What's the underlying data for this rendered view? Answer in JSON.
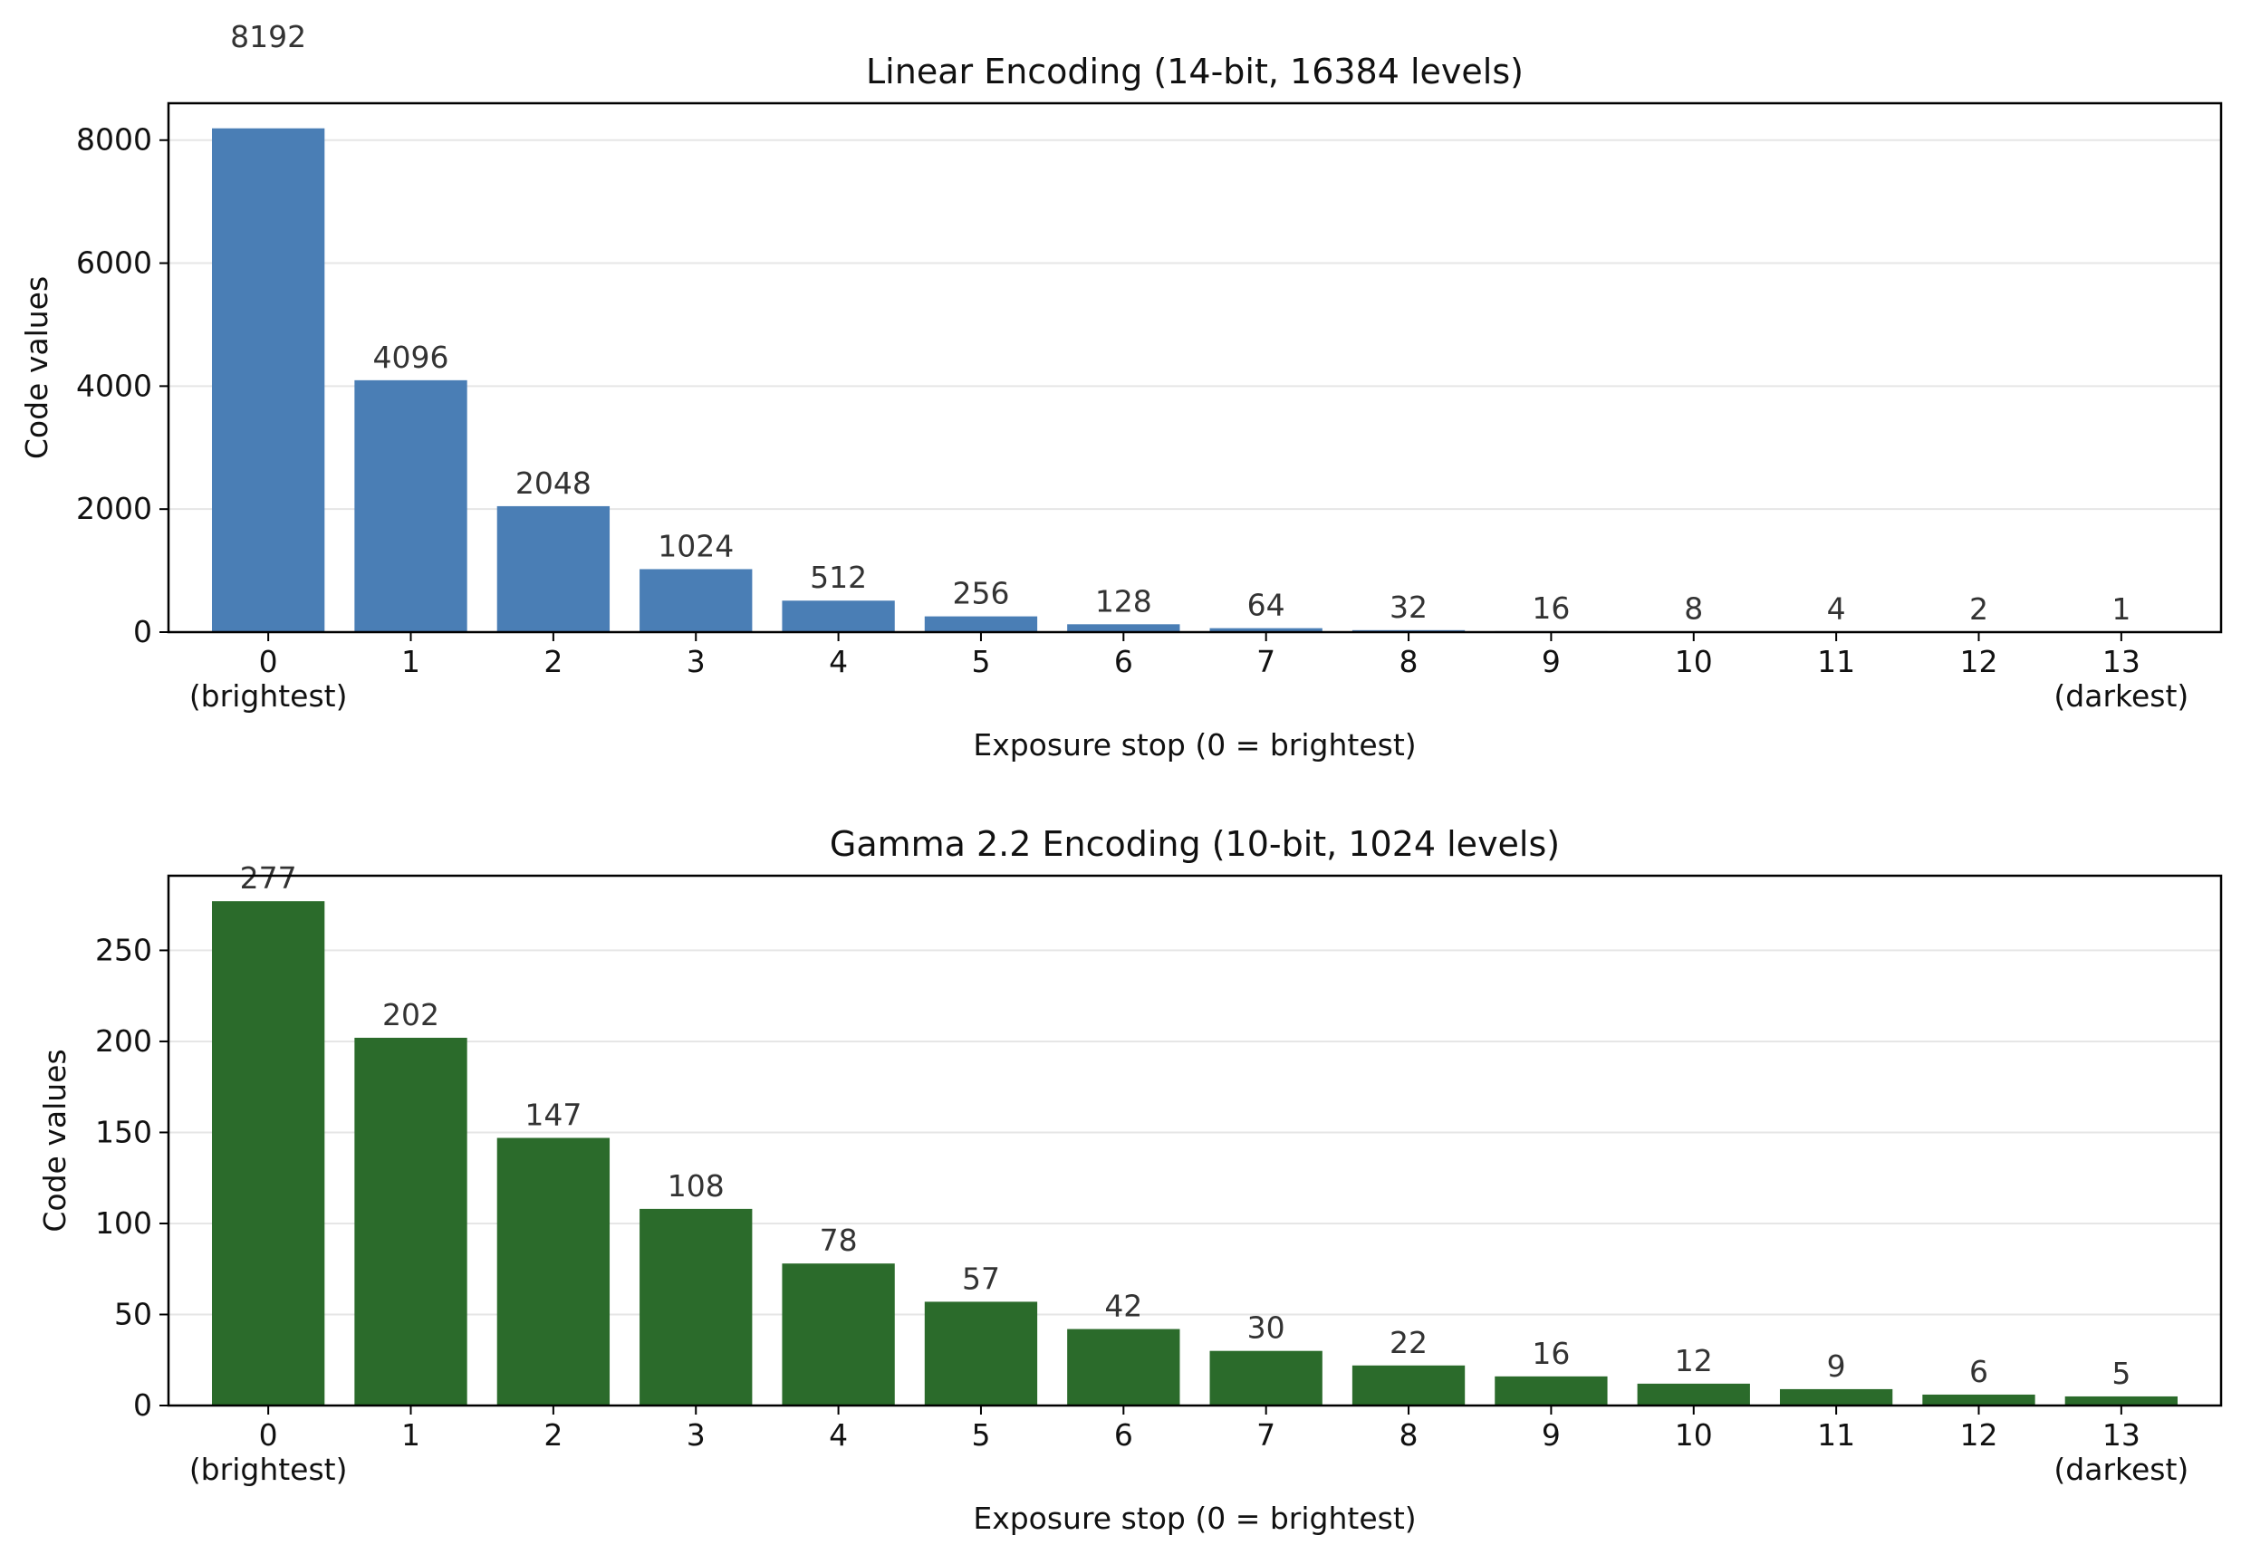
{
  "chart_data": [
    {
      "type": "bar",
      "title": "Linear Encoding (14-bit, 16384 levels)",
      "xlabel": "Exposure stop (0 = brightest)",
      "ylabel": "Code values",
      "categories": [
        "0",
        "1",
        "2",
        "3",
        "4",
        "5",
        "6",
        "7",
        "8",
        "9",
        "10",
        "11",
        "12",
        "13"
      ],
      "category_sublabels": {
        "0": "(brightest)",
        "13": "(darkest)"
      },
      "values": [
        8192,
        4096,
        2048,
        1024,
        512,
        256,
        128,
        64,
        32,
        16,
        8,
        4,
        2,
        1
      ],
      "data_labels": [
        "8192",
        "4096",
        "2048",
        "1024",
        "512",
        "256",
        "128",
        "64",
        "32",
        "16",
        "8",
        "4",
        "2",
        "1"
      ],
      "yticks": [
        "0",
        "2000",
        "4000",
        "6000",
        "8000"
      ],
      "ylim": [
        0,
        8600
      ],
      "grid": "y",
      "color": "#4a7eb5"
    },
    {
      "type": "bar",
      "title": "Gamma 2.2 Encoding (10-bit, 1024 levels)",
      "xlabel": "Exposure stop (0 = brightest)",
      "ylabel": "Code values",
      "categories": [
        "0",
        "1",
        "2",
        "3",
        "4",
        "5",
        "6",
        "7",
        "8",
        "9",
        "10",
        "11",
        "12",
        "13"
      ],
      "category_sublabels": {
        "0": "(brightest)",
        "13": "(darkest)"
      },
      "values": [
        277,
        202,
        147,
        108,
        78,
        57,
        42,
        30,
        22,
        16,
        12,
        9,
        6,
        5
      ],
      "data_labels": [
        "277",
        "202",
        "147",
        "108",
        "78",
        "57",
        "42",
        "30",
        "22",
        "16",
        "12",
        "9",
        "6",
        "5"
      ],
      "yticks": [
        "0",
        "50",
        "100",
        "150",
        "200",
        "250"
      ],
      "ylim": [
        0,
        291
      ],
      "grid": "y",
      "color": "#2b6b2b"
    }
  ]
}
